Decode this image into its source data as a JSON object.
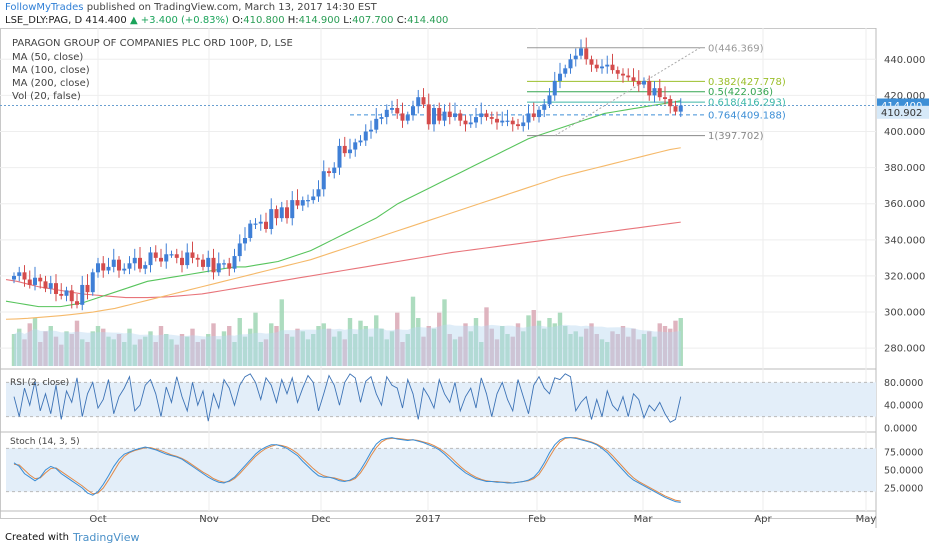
{
  "header": {
    "brand": "FollowMyTrades",
    "published": "published on TradingView.com, March 13, 2017 14:30 EST",
    "symbol": "LSE_DLY:PAG, D",
    "last": "414.400",
    "change": "▲ +3.400 (+0.83%)",
    "o_label": "O:",
    "o": "410.800",
    "h_label": "H:",
    "h": "414.900",
    "l_label": "L:",
    "l": "407.700",
    "c_label": "C:",
    "c": "414.400"
  },
  "legend": {
    "title": "PARAGON GROUP OF COMPANIES PLC ORD 100P, D, LSE",
    "ma50": "MA (50, close)",
    "ma100": "MA (100, close)",
    "ma200": "MA (200, close)",
    "vol": "Vol (20, false)"
  },
  "footer": {
    "created_with": "Created with",
    "tradingview": "TradingView"
  },
  "colors": {
    "up": "#3f7fd6",
    "down": "#d44c4c",
    "ma50": "#57c45c",
    "ma100": "#f5b96a",
    "ma200": "#e8747a",
    "rsi": "#3d73b6",
    "stoch_k": "#3a8ed6",
    "stoch_d": "#e08a4a",
    "band": "#e3eef9"
  },
  "chart_data": [
    {
      "type": "candlestick",
      "title": "PARAGON GROUP OF COMPANIES PLC ORD 100P, D, LSE",
      "x_ticks": [
        "Oct",
        "Nov",
        "Dec",
        "2017",
        "Feb",
        "Mar",
        "Apr",
        "May"
      ],
      "y_ticks": [
        280,
        300,
        320,
        340,
        360,
        380,
        400,
        420,
        440
      ],
      "ylim": [
        269,
        454
      ],
      "price_labels": {
        "last": "414.400",
        "prev": "410.902"
      },
      "fib_levels": [
        {
          "ratio": "0",
          "value": 446.369,
          "label": "0(446.369)",
          "color": "#999999"
        },
        {
          "ratio": "0.382",
          "value": 427.778,
          "label": "0.382(427.778)",
          "color": "#9bbf2b"
        },
        {
          "ratio": "0.5",
          "value": 422.036,
          "label": "0.5(422.036)",
          "color": "#35a550"
        },
        {
          "ratio": "0.618",
          "value": 416.293,
          "label": "0.618(416.293)",
          "color": "#3db8a8"
        },
        {
          "ratio": "0.764",
          "value": 409.188,
          "label": "0.764(409.188)",
          "color": "#3d8fd6"
        },
        {
          "ratio": "1",
          "value": 397.702,
          "label": "1(397.702)",
          "color": "#888888"
        }
      ],
      "closes": [
        320,
        322,
        318,
        315,
        319,
        317,
        313,
        316,
        310,
        309,
        312,
        306,
        304,
        315,
        311,
        322,
        327,
        323,
        325,
        329,
        323,
        324,
        327,
        330,
        324,
        326,
        333,
        330,
        328,
        332,
        332,
        330,
        326,
        333,
        330,
        329,
        325,
        330,
        322,
        327,
        327,
        324,
        331,
        338,
        341,
        349,
        349,
        350,
        346,
        357,
        352,
        358,
        352,
        362,
        359,
        362,
        362,
        364,
        368,
        378,
        377,
        380,
        392,
        388,
        390,
        394,
        395,
        400,
        401,
        407,
        408,
        412,
        413,
        410,
        406,
        409,
        414,
        419,
        415,
        404,
        413,
        406,
        411,
        408,
        410,
        406,
        404,
        405,
        408,
        410,
        408,
        407,
        405,
        406,
        406,
        404,
        403,
        405,
        410,
        408,
        412,
        415,
        420,
        428,
        432,
        435,
        440,
        442,
        446,
        440,
        437,
        435,
        436,
        437,
        434,
        432,
        431,
        430,
        428,
        426,
        428,
        420,
        424,
        419,
        418,
        414,
        411,
        414.4
      ],
      "volumes": [
        12,
        14,
        10,
        16,
        18,
        9,
        13,
        15,
        11,
        8,
        13,
        12,
        17,
        10,
        9,
        13,
        15,
        14,
        11,
        10,
        12,
        9,
        14,
        8,
        10,
        11,
        13,
        9,
        15,
        12,
        10,
        8,
        12,
        11,
        14,
        9,
        10,
        12,
        16,
        10,
        13,
        15,
        9,
        18,
        11,
        14,
        20,
        9,
        10,
        16,
        15,
        25,
        12,
        11,
        14,
        13,
        10,
        12,
        15,
        16,
        14,
        11,
        13,
        10,
        18,
        12,
        17,
        15,
        11,
        19,
        14,
        10,
        13,
        20,
        9,
        12,
        26,
        18,
        11,
        15,
        14,
        20,
        25,
        12,
        10,
        11,
        16,
        13,
        18,
        9,
        22,
        14,
        10,
        15,
        12,
        11,
        16,
        13,
        19,
        21,
        17,
        14,
        18,
        16,
        20,
        15,
        12,
        13,
        11,
        14,
        16,
        12,
        10,
        9,
        13,
        12,
        15,
        11,
        14,
        10,
        12,
        13,
        11,
        16,
        15,
        14,
        17,
        18
      ],
      "ma50": [
        306,
        305,
        304,
        303,
        303,
        303,
        304,
        305,
        307,
        309,
        311,
        313,
        315,
        317,
        318,
        319,
        320,
        321,
        322,
        323,
        324,
        325,
        325,
        326,
        327,
        328,
        330,
        332,
        334,
        337,
        340,
        343,
        346,
        349,
        352,
        356,
        360,
        363,
        366,
        369,
        372,
        375,
        378,
        381,
        384,
        387,
        390,
        393,
        396,
        398,
        400,
        402,
        404,
        406,
        408,
        410,
        411,
        412,
        413,
        414,
        415,
        416,
        417
      ],
      "ma100": [
        296,
        296.2,
        296.5,
        297,
        297.5,
        298,
        298.6,
        299.3,
        300,
        301,
        302,
        303.5,
        305,
        306.5,
        308,
        309.5,
        311,
        312.5,
        314,
        315.5,
        317,
        318.5,
        320,
        321.5,
        323,
        324.5,
        326,
        327.5,
        329,
        331,
        333,
        335,
        337,
        339,
        341,
        343,
        345,
        347,
        349,
        351,
        353,
        355,
        357,
        359,
        361,
        363,
        365,
        367,
        369,
        371,
        373,
        375,
        376.5,
        378,
        379.5,
        381,
        382.5,
        384,
        385.5,
        387,
        388.5,
        390,
        391
      ],
      "ma200": [
        318,
        317,
        315.5,
        314,
        313,
        312,
        311,
        310,
        309.5,
        309,
        308.5,
        308,
        308,
        308,
        308.2,
        308.5,
        309,
        309.5,
        310,
        311,
        312,
        313,
        314,
        315,
        316,
        317,
        318,
        319,
        320,
        321,
        322,
        323,
        324,
        325,
        326,
        327,
        328,
        329,
        330,
        331,
        332,
        333,
        333.8,
        334.6,
        335.4,
        336.2,
        337,
        337.8,
        338.6,
        339.4,
        340.2,
        341,
        341.8,
        342.6,
        343.4,
        344.2,
        345,
        345.8,
        346.6,
        347.4,
        348.2,
        349,
        349.8
      ]
    },
    {
      "type": "line",
      "title": "RSI (2, close)",
      "y_ticks": [
        "80.0000",
        "40.0000",
        "0.0000"
      ],
      "ylim": [
        0,
        100
      ],
      "band": [
        20,
        80
      ],
      "values": [
        55,
        20,
        70,
        40,
        82,
        30,
        60,
        25,
        75,
        15,
        65,
        45,
        88,
        20,
        60,
        80,
        35,
        50,
        85,
        25,
        55,
        70,
        90,
        30,
        40,
        75,
        85,
        60,
        20,
        72,
        45,
        90,
        55,
        30,
        80,
        40,
        65,
        12,
        60,
        35,
        85,
        70,
        40,
        75,
        90,
        95,
        80,
        50,
        88,
        75,
        45,
        85,
        60,
        88,
        45,
        70,
        92,
        80,
        30,
        60,
        92,
        75,
        40,
        80,
        95,
        88,
        45,
        82,
        90,
        60,
        40,
        90,
        75,
        70,
        35,
        85,
        60,
        15,
        70,
        55,
        35,
        85,
        60,
        45,
        80,
        30,
        55,
        70,
        35,
        88,
        60,
        20,
        60,
        80,
        50,
        30,
        85,
        55,
        25,
        75,
        90,
        70,
        60,
        88,
        85,
        95,
        90,
        30,
        45,
        55,
        15,
        50,
        20,
        65,
        40,
        30,
        55,
        20,
        60,
        50,
        18,
        40,
        30,
        45,
        25,
        10,
        15,
        55
      ]
    },
    {
      "type": "line",
      "title": "Stoch (14, 3, 5)",
      "y_ticks": [
        "75.0000",
        "50.0000",
        "25.0000"
      ],
      "ylim": [
        0,
        100
      ],
      "band": [
        20,
        80
      ],
      "k": [
        60,
        55,
        45,
        40,
        35,
        40,
        50,
        55,
        52,
        45,
        40,
        35,
        30,
        25,
        18,
        15,
        20,
        30,
        42,
        55,
        65,
        72,
        75,
        78,
        80,
        82,
        80,
        78,
        75,
        72,
        70,
        68,
        65,
        60,
        55,
        50,
        45,
        40,
        36,
        33,
        32,
        35,
        40,
        48,
        56,
        64,
        72,
        78,
        82,
        85,
        85,
        83,
        80,
        75,
        70,
        62,
        55,
        48,
        42,
        40,
        40,
        38,
        35,
        34,
        36,
        40,
        50,
        62,
        75,
        86,
        92,
        94,
        95,
        93,
        92,
        91,
        92,
        90,
        88,
        85,
        82,
        78,
        72,
        65,
        58,
        52,
        46,
        42,
        38,
        36,
        34,
        34,
        33,
        33,
        32,
        32,
        33,
        34,
        36,
        40,
        48,
        60,
        74,
        85,
        92,
        95,
        95,
        94,
        92,
        90,
        88,
        85,
        80,
        74,
        66,
        58,
        50,
        42,
        36,
        32,
        28,
        24,
        20,
        16,
        12,
        9,
        6,
        5
      ],
      "d": [
        58,
        57,
        50,
        43,
        38,
        39,
        46,
        52,
        53,
        48,
        43,
        38,
        33,
        28,
        22,
        17,
        18,
        25,
        36,
        48,
        60,
        69,
        74,
        77,
        79,
        81,
        81,
        79,
        77,
        74,
        71,
        69,
        66,
        62,
        57,
        52,
        47,
        43,
        38,
        35,
        33,
        34,
        38,
        45,
        53,
        61,
        69,
        75,
        80,
        83,
        85,
        84,
        82,
        78,
        73,
        66,
        59,
        52,
        46,
        42,
        40,
        39,
        37,
        35,
        35,
        38,
        46,
        57,
        70,
        81,
        89,
        93,
        94,
        94,
        93,
        92,
        92,
        91,
        89,
        87,
        84,
        80,
        75,
        69,
        62,
        55,
        49,
        44,
        40,
        37,
        35,
        34,
        34,
        33,
        33,
        32,
        33,
        34,
        35,
        38,
        44,
        55,
        68,
        80,
        89,
        94,
        95,
        95,
        93,
        91,
        89,
        86,
        82,
        77,
        70,
        62,
        54,
        46,
        39,
        34,
        30,
        26,
        22,
        18,
        14,
        11,
        8,
        7
      ]
    }
  ]
}
